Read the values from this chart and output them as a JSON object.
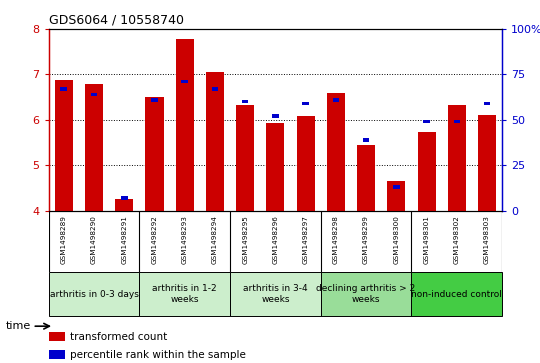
{
  "title": "GDS6064 / 10558740",
  "samples": [
    "GSM1498289",
    "GSM1498290",
    "GSM1498291",
    "GSM1498292",
    "GSM1498293",
    "GSM1498294",
    "GSM1498295",
    "GSM1498296",
    "GSM1498297",
    "GSM1498298",
    "GSM1498299",
    "GSM1498300",
    "GSM1498301",
    "GSM1498302",
    "GSM1498303"
  ],
  "red_values": [
    6.88,
    6.78,
    4.25,
    6.5,
    7.78,
    7.05,
    6.32,
    5.92,
    6.08,
    6.6,
    5.45,
    4.65,
    5.73,
    6.32,
    6.1
  ],
  "blue_values": [
    68,
    65,
    8,
    62,
    72,
    68,
    61,
    53,
    60,
    62,
    40,
    14,
    50,
    50,
    60
  ],
  "groups": [
    {
      "label": "arthritis in 0-3 days",
      "start": 0,
      "end": 3,
      "color": "#cceecc"
    },
    {
      "label": "arthritis in 1-2\nweeks",
      "start": 3,
      "end": 6,
      "color": "#cceecc"
    },
    {
      "label": "arthritis in 3-4\nweeks",
      "start": 6,
      "end": 9,
      "color": "#cceecc"
    },
    {
      "label": "declining arthritis > 2\nweeks",
      "start": 9,
      "end": 12,
      "color": "#99dd99"
    },
    {
      "label": "non-induced control",
      "start": 12,
      "end": 15,
      "color": "#44cc44"
    }
  ],
  "ylim_left": [
    4,
    8
  ],
  "ylim_right": [
    0,
    100
  ],
  "yticks_left": [
    4,
    5,
    6,
    7,
    8
  ],
  "yticks_right": [
    0,
    25,
    50,
    75,
    100
  ],
  "red_color": "#cc0000",
  "blue_color": "#0000cc",
  "bar_width": 0.6,
  "blue_bar_width": 0.22,
  "sample_bg_color": "#c8c8c8",
  "legend_labels": [
    "transformed count",
    "percentile rank within the sample"
  ]
}
